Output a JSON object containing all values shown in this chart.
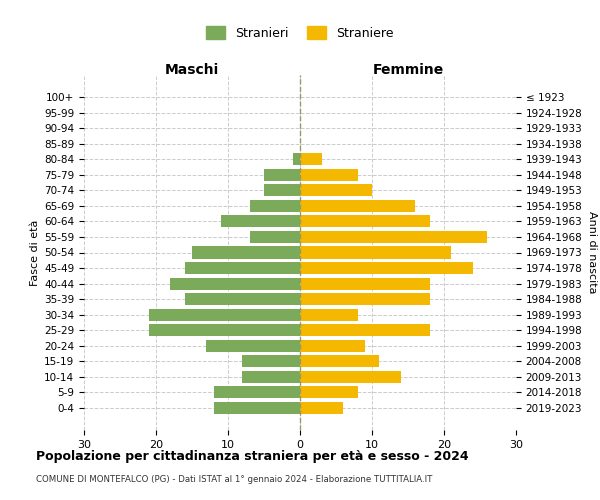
{
  "age_groups": [
    "0-4",
    "5-9",
    "10-14",
    "15-19",
    "20-24",
    "25-29",
    "30-34",
    "35-39",
    "40-44",
    "45-49",
    "50-54",
    "55-59",
    "60-64",
    "65-69",
    "70-74",
    "75-79",
    "80-84",
    "85-89",
    "90-94",
    "95-99",
    "100+"
  ],
  "birth_years": [
    "2019-2023",
    "2014-2018",
    "2009-2013",
    "2004-2008",
    "1999-2003",
    "1994-1998",
    "1989-1993",
    "1984-1988",
    "1979-1983",
    "1974-1978",
    "1969-1973",
    "1964-1968",
    "1959-1963",
    "1954-1958",
    "1949-1953",
    "1944-1948",
    "1939-1943",
    "1934-1938",
    "1929-1933",
    "1924-1928",
    "≤ 1923"
  ],
  "maschi": [
    12,
    12,
    8,
    8,
    13,
    21,
    21,
    16,
    18,
    16,
    15,
    7,
    11,
    7,
    5,
    5,
    1,
    0,
    0,
    0,
    0
  ],
  "femmine": [
    6,
    8,
    14,
    11,
    9,
    18,
    8,
    18,
    18,
    24,
    21,
    26,
    18,
    16,
    10,
    8,
    3,
    0,
    0,
    0,
    0
  ],
  "color_maschi": "#7aaa5a",
  "color_femmine": "#f5b800",
  "title": "Popolazione per cittadinanza straniera per età e sesso - 2024",
  "subtitle": "COMUNE DI MONTEFALCO (PG) - Dati ISTAT al 1° gennaio 2024 - Elaborazione TUTTITALIA.IT",
  "xlabel_left": "Maschi",
  "xlabel_right": "Femmine",
  "ylabel_left": "Fasce di età",
  "ylabel_right": "Anni di nascita",
  "legend_maschi": "Stranieri",
  "legend_femmine": "Straniere",
  "xlim": 30,
  "background_color": "#ffffff"
}
